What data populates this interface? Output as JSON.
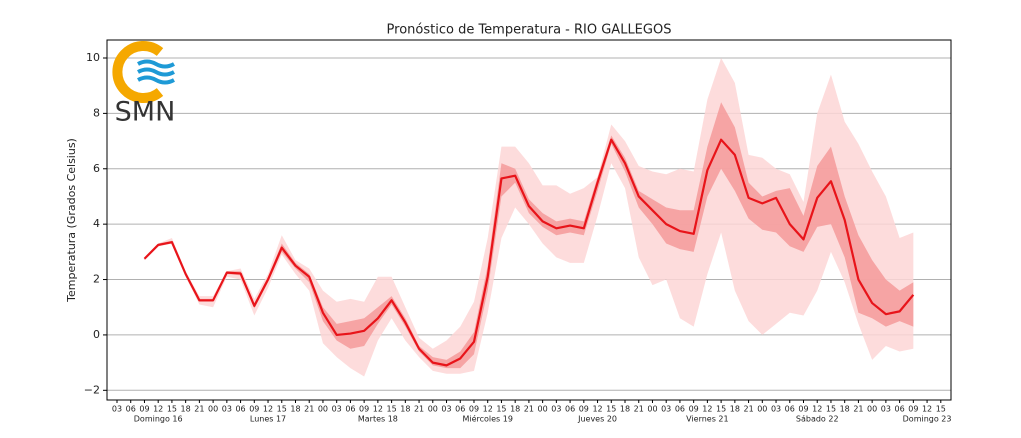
{
  "chart_data": {
    "type": "line",
    "title": "Pronóstico de Temperatura - RIO GALLEGOS",
    "y_label": "Temperatura (Grados Celsius)",
    "logo": "SMN",
    "categories": [
      "03",
      "06",
      "09",
      "12",
      "15",
      "18",
      "21",
      "00",
      "03",
      "06",
      "09",
      "12",
      "15",
      "18",
      "21",
      "00",
      "03",
      "06",
      "09",
      "12",
      "15",
      "18",
      "21",
      "00",
      "03",
      "06",
      "09",
      "12",
      "15",
      "18",
      "21",
      "00",
      "03",
      "06",
      "09",
      "12",
      "15",
      "18",
      "21",
      "00",
      "03",
      "06",
      "09",
      "12",
      "15",
      "18",
      "21",
      "00",
      "03",
      "06",
      "09",
      "12",
      "15",
      "18",
      "21",
      "00",
      "03",
      "06",
      "09",
      "12",
      "15"
    ],
    "day_labels": [
      "Domingo 16",
      "Lunes 17",
      "Martes 18",
      "Miércoles 19",
      "Jueves 20",
      "Viernes 21",
      "Sábado 22",
      "Domingo 23"
    ],
    "ylim": [
      -2.35,
      10.65
    ],
    "yticks": [
      {
        "value": -2,
        "label": "−2"
      },
      0,
      2,
      4,
      6,
      8,
      10
    ],
    "grid": true,
    "bands": [
      {
        "color": "#fdd6d6",
        "lower": [
          null,
          null,
          2.7,
          3.2,
          3.3,
          2.1,
          1.1,
          1.0,
          2.1,
          2.0,
          0.7,
          1.7,
          2.9,
          2.2,
          1.6,
          -0.3,
          -0.8,
          -1.2,
          -1.5,
          -0.2,
          0.6,
          -0.2,
          -0.8,
          -1.3,
          -1.4,
          -1.4,
          -1.3,
          0.8,
          3.5,
          4.6,
          4.0,
          3.3,
          2.8,
          2.6,
          2.6,
          4.3,
          6.2,
          5.3,
          2.8,
          1.8,
          2.0,
          0.6,
          0.3,
          2.2,
          3.7,
          1.6,
          0.5,
          0.0,
          0.4,
          0.8,
          0.7,
          1.6,
          3.0,
          1.9,
          0.4,
          -0.9,
          -0.4,
          -0.6,
          -0.5,
          null,
          null
        ],
        "upper": [
          null,
          null,
          2.8,
          3.3,
          3.5,
          2.3,
          1.4,
          1.4,
          2.3,
          2.4,
          1.3,
          2.2,
          3.6,
          2.7,
          2.4,
          1.6,
          1.2,
          1.3,
          1.2,
          2.1,
          2.1,
          1.0,
          -0.1,
          -0.5,
          -0.2,
          0.3,
          1.2,
          3.5,
          6.8,
          6.8,
          6.2,
          5.4,
          5.4,
          5.1,
          5.3,
          5.7,
          7.6,
          7.0,
          6.1,
          5.9,
          5.8,
          6.0,
          5.9,
          8.5,
          10.0,
          9.1,
          6.5,
          6.4,
          6.0,
          5.8,
          4.8,
          8.0,
          9.4,
          7.7,
          6.9,
          5.9,
          5.0,
          3.5,
          3.7,
          null,
          null
        ]
      },
      {
        "color": "#f49a9a",
        "lower": [
          null,
          null,
          2.7,
          3.2,
          3.3,
          2.15,
          1.2,
          1.2,
          2.2,
          2.15,
          0.95,
          1.9,
          3.0,
          2.4,
          1.9,
          0.5,
          -0.2,
          -0.5,
          -0.4,
          0.4,
          1.1,
          0.3,
          -0.6,
          -1.1,
          -1.2,
          -1.2,
          -0.7,
          1.6,
          5.0,
          5.5,
          4.4,
          3.9,
          3.6,
          3.7,
          3.6,
          5.2,
          6.9,
          5.9,
          4.6,
          4.0,
          3.3,
          3.1,
          3.0,
          5.0,
          6.0,
          5.2,
          4.2,
          3.8,
          3.7,
          3.2,
          3.0,
          3.9,
          4.0,
          2.8,
          0.8,
          0.6,
          0.3,
          0.5,
          0.3,
          null,
          null
        ],
        "upper": [
          null,
          null,
          2.8,
          3.3,
          3.4,
          2.25,
          1.3,
          1.3,
          2.3,
          2.3,
          1.15,
          2.1,
          3.3,
          2.6,
          2.2,
          1.0,
          0.4,
          0.5,
          0.6,
          1.0,
          1.4,
          0.6,
          -0.4,
          -0.8,
          -0.9,
          -0.6,
          0.1,
          2.5,
          6.2,
          6.0,
          4.9,
          4.4,
          4.1,
          4.2,
          4.1,
          5.7,
          7.2,
          6.4,
          5.2,
          4.9,
          4.6,
          4.5,
          4.5,
          6.8,
          8.4,
          7.5,
          5.5,
          5.0,
          5.2,
          5.3,
          4.3,
          6.1,
          6.8,
          5.0,
          3.6,
          2.7,
          2.0,
          1.6,
          1.9,
          null,
          null
        ]
      }
    ],
    "series": [
      {
        "color": "#e8141a",
        "values": [
          null,
          null,
          2.75,
          3.25,
          3.35,
          2.2,
          1.25,
          1.25,
          2.25,
          2.22,
          1.05,
          2.0,
          3.15,
          2.5,
          2.1,
          0.8,
          0.0,
          0.05,
          0.15,
          0.6,
          1.25,
          0.45,
          -0.5,
          -1.0,
          -1.1,
          -0.85,
          -0.25,
          2.1,
          5.65,
          5.75,
          4.65,
          4.1,
          3.85,
          3.95,
          3.85,
          5.5,
          7.05,
          6.2,
          5.0,
          4.5,
          4.0,
          3.75,
          3.65,
          5.95,
          7.05,
          6.5,
          4.95,
          4.75,
          4.95,
          4.0,
          3.45,
          4.95,
          5.55,
          4.15,
          2.0,
          1.15,
          0.75,
          0.85,
          1.45,
          null,
          null
        ]
      }
    ]
  }
}
